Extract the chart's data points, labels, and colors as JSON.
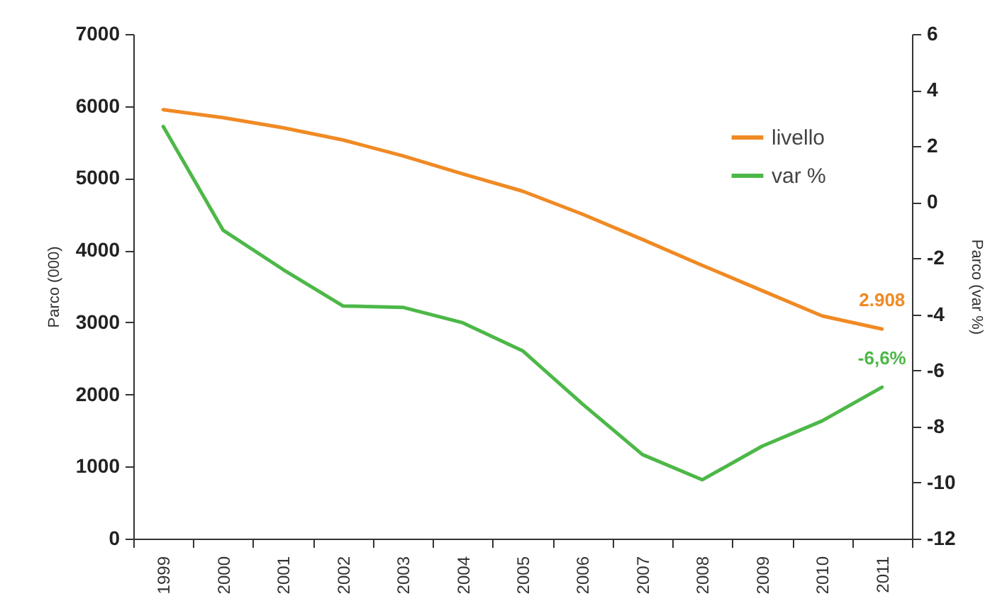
{
  "chart_data": {
    "type": "line",
    "ylabel": "Parco (000)",
    "y2label": "Parco (var %)",
    "categories": [
      "1999",
      "2000",
      "2001",
      "2002",
      "2003",
      "2004",
      "2005",
      "2006",
      "2007",
      "2008",
      "2009",
      "2010",
      "2011"
    ],
    "ylim": [
      0,
      7000
    ],
    "yticks": [
      0,
      1000,
      2000,
      3000,
      4000,
      5000,
      6000,
      7000
    ],
    "y2lim": [
      -12,
      6
    ],
    "y2ticks": [
      -12,
      -10,
      -8,
      -6,
      -4,
      -2,
      0,
      2,
      4,
      6
    ],
    "series": [
      {
        "name": "livello",
        "color": "#f08a24",
        "values": [
          5950,
          5840,
          5700,
          5530,
          5310,
          5060,
          4820,
          4500,
          4150,
          3790,
          3440,
          3090,
          2908
        ],
        "value_labels": [
          null,
          null,
          null,
          null,
          null,
          null,
          null,
          null,
          null,
          null,
          null,
          null,
          "2.908"
        ]
      },
      {
        "name": "var %",
        "color": "#4db848",
        "axis": "y2",
        "values": [
          2.7,
          -1.0,
          -2.4,
          -3.7,
          -3.75,
          -4.3,
          -5.3,
          -7.2,
          -9.0,
          -9.9,
          -8.7,
          -7.8,
          -6.6
        ],
        "value_labels": [
          null,
          null,
          null,
          null,
          null,
          null,
          null,
          null,
          null,
          null,
          null,
          null,
          "-6,6%"
        ]
      }
    ],
    "legend": "top right",
    "grid": false,
    "line_style": "solid",
    "marker": "none"
  }
}
